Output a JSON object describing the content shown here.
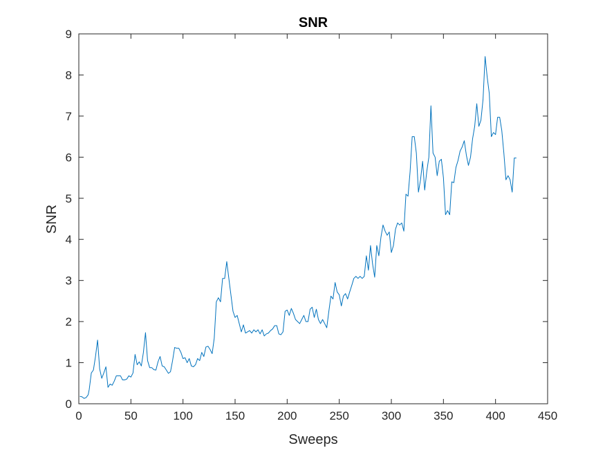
{
  "chart_data": {
    "type": "line",
    "title": "SNR",
    "xlabel": "Sweeps",
    "ylabel": "SNR",
    "xlim": [
      0,
      450
    ],
    "ylim": [
      0,
      9
    ],
    "xticks": [
      0,
      50,
      100,
      150,
      200,
      250,
      300,
      350,
      400,
      450
    ],
    "yticks": [
      0,
      1,
      2,
      3,
      4,
      5,
      6,
      7,
      8,
      9
    ],
    "grid": false,
    "legend": "none",
    "line_color": "#0072BD",
    "series": [
      {
        "x": [
          1,
          3,
          5,
          7,
          9,
          10,
          12,
          14,
          16,
          18,
          20,
          22,
          24,
          26,
          28,
          30,
          32,
          34,
          36,
          38,
          40,
          42,
          44,
          46,
          48,
          50,
          52,
          54,
          56,
          58,
          60,
          62,
          64,
          66,
          68,
          70,
          72,
          74,
          76,
          78,
          80,
          82,
          84,
          86,
          88,
          90,
          92,
          94,
          96,
          98,
          100,
          102,
          104,
          106,
          108,
          110,
          112,
          114,
          116,
          118,
          120,
          122,
          124,
          126,
          128,
          130,
          132,
          134,
          136,
          138,
          140,
          142,
          144,
          146,
          148,
          150,
          152,
          154,
          156,
          158,
          160,
          162,
          164,
          166,
          168,
          170,
          172,
          174,
          176,
          178,
          180,
          182,
          184,
          186,
          188,
          190,
          192,
          194,
          196,
          198,
          200,
          202,
          204,
          206,
          208,
          210,
          212,
          214,
          216,
          218,
          220,
          222,
          224,
          226,
          228,
          230,
          232,
          234,
          236,
          238,
          240,
          242,
          244,
          246,
          248,
          250,
          252,
          254,
          256,
          258,
          260,
          262,
          264,
          266,
          268,
          270,
          272,
          274,
          276,
          278,
          280,
          282,
          284,
          286,
          288,
          290,
          292,
          294,
          296,
          298,
          300,
          302,
          304,
          306,
          308,
          310,
          312,
          314,
          316,
          318,
          320,
          322,
          324,
          326,
          328,
          330,
          332,
          334,
          336,
          338,
          340,
          342,
          344,
          346,
          348,
          350,
          352,
          354,
          356,
          358,
          360,
          362,
          364,
          366,
          368,
          370,
          372,
          374,
          376,
          378,
          380,
          382,
          384,
          386,
          388,
          390,
          392,
          394,
          396,
          398,
          400,
          402,
          404,
          406,
          408,
          410,
          412,
          414,
          416,
          418,
          420
        ],
        "values": [
          0.18,
          0.17,
          0.13,
          0.15,
          0.22,
          0.35,
          0.75,
          0.82,
          1.15,
          1.55,
          0.85,
          0.62,
          0.75,
          0.9,
          0.4,
          0.48,
          0.45,
          0.55,
          0.68,
          0.68,
          0.68,
          0.58,
          0.58,
          0.6,
          0.68,
          0.65,
          0.75,
          1.2,
          0.95,
          1.02,
          0.92,
          1.25,
          1.73,
          1.05,
          0.88,
          0.88,
          0.83,
          0.82,
          1.02,
          1.15,
          0.92,
          0.9,
          0.82,
          0.74,
          0.78,
          1.05,
          1.37,
          1.35,
          1.35,
          1.25,
          1.1,
          1.12,
          1.0,
          1.1,
          0.92,
          0.9,
          0.95,
          1.1,
          1.05,
          1.25,
          1.15,
          1.38,
          1.4,
          1.32,
          1.22,
          1.6,
          2.48,
          2.58,
          2.48,
          3.05,
          3.05,
          3.46,
          3.05,
          2.65,
          2.25,
          2.1,
          2.15,
          1.95,
          1.75,
          1.92,
          1.72,
          1.75,
          1.78,
          1.72,
          1.8,
          1.75,
          1.8,
          1.7,
          1.8,
          1.65,
          1.7,
          1.72,
          1.78,
          1.82,
          1.9,
          1.9,
          1.7,
          1.68,
          1.75,
          2.25,
          2.28,
          2.15,
          2.32,
          2.2,
          2.05,
          2.0,
          1.95,
          2.05,
          2.15,
          2.0,
          2.0,
          2.3,
          2.35,
          2.1,
          2.3,
          2.05,
          1.95,
          2.05,
          1.95,
          1.85,
          2.25,
          2.62,
          2.55,
          2.95,
          2.72,
          2.65,
          2.38,
          2.62,
          2.68,
          2.55,
          2.72,
          2.88,
          3.05,
          3.1,
          3.05,
          3.1,
          3.05,
          3.1,
          3.6,
          3.25,
          3.85,
          3.4,
          3.08,
          3.85,
          3.6,
          4.05,
          4.35,
          4.2,
          4.1,
          4.18,
          3.68,
          3.85,
          4.25,
          4.4,
          4.35,
          4.4,
          4.2,
          5.1,
          5.05,
          5.65,
          6.5,
          6.5,
          6.1,
          5.15,
          5.45,
          5.9,
          5.2,
          5.65,
          6.0,
          7.25,
          6.1,
          6.0,
          5.55,
          5.9,
          5.95,
          5.5,
          4.6,
          4.7,
          4.6,
          5.4,
          5.38,
          5.75,
          5.92,
          6.15,
          6.25,
          6.4,
          6.05,
          5.8,
          6.0,
          6.45,
          6.75,
          7.3,
          6.75,
          6.9,
          7.4,
          8.45,
          7.95,
          7.55,
          6.5,
          6.6,
          6.55,
          6.97,
          6.97,
          6.65,
          6.1,
          5.45,
          5.55,
          5.45,
          5.15,
          5.98,
          5.98
        ]
      }
    ]
  }
}
